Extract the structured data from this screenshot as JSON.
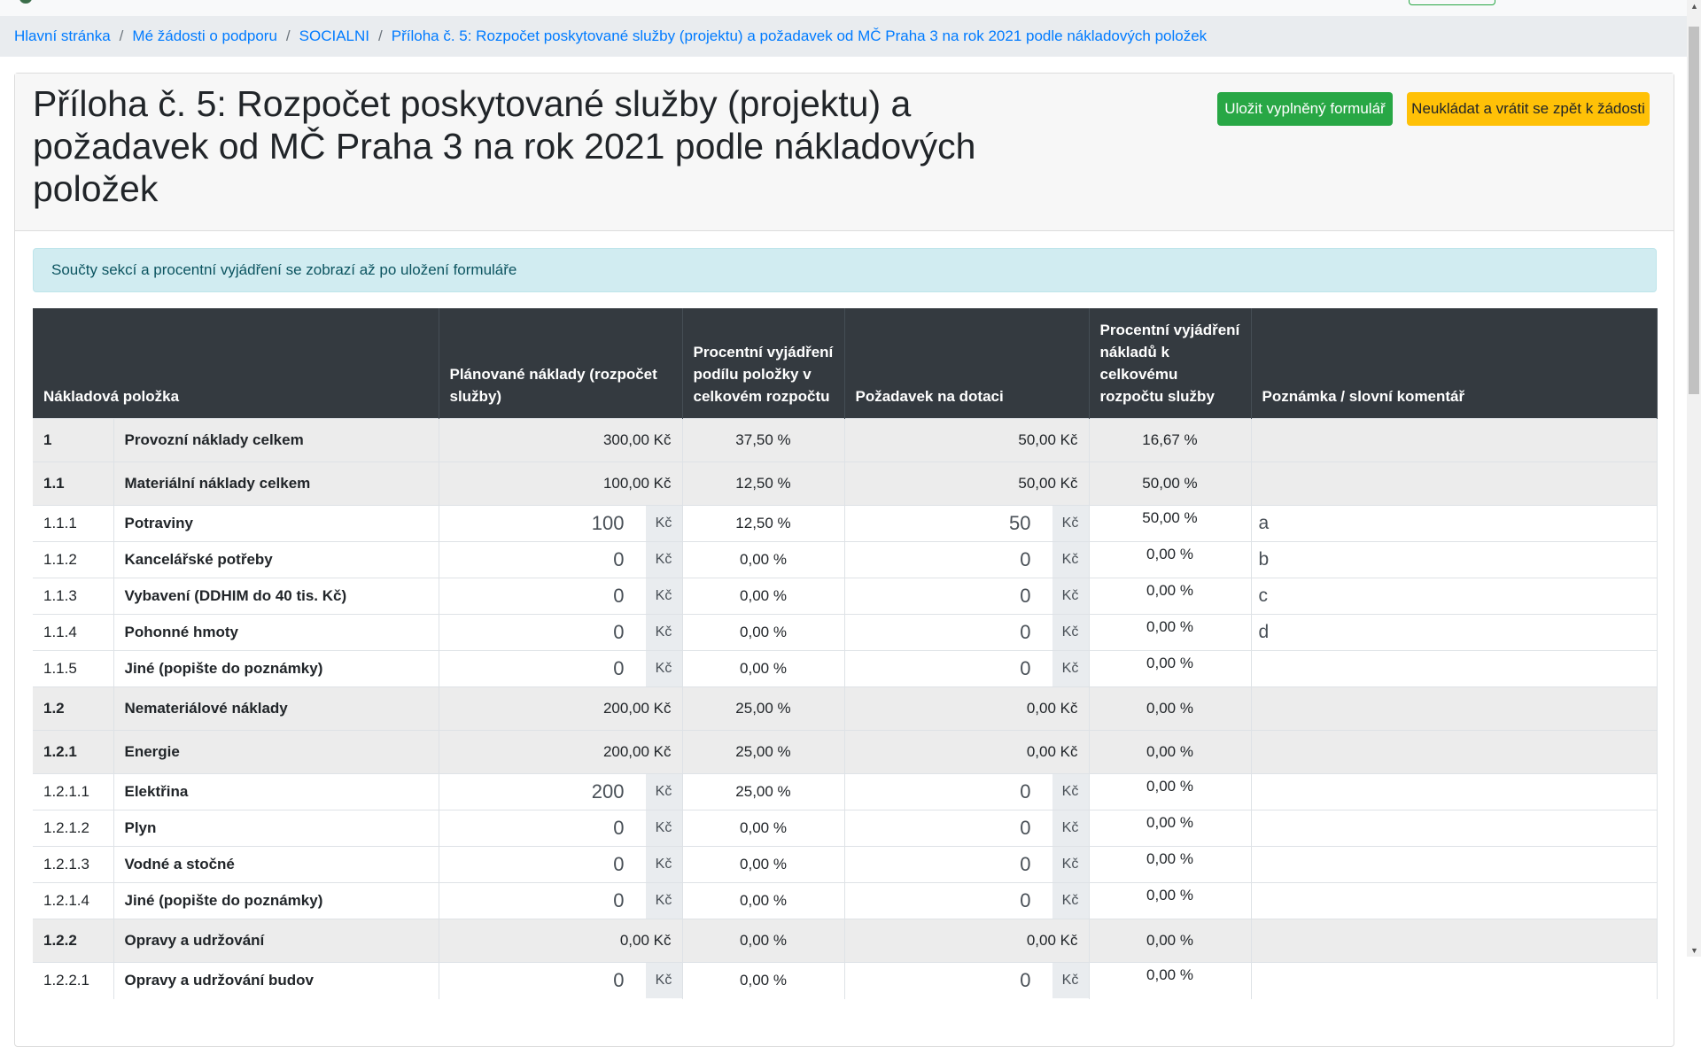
{
  "breadcrumb": [
    "Hlavní stránka",
    "Mé žádosti o podporu",
    "SOCIALNI",
    "Příloha č. 5: Rozpočet poskytované služby (projektu) a požadavek od MČ Praha 3 na rok 2021 podle nákladových položek"
  ],
  "title": "Příloha č. 5: Rozpočet poskytované služby (projektu) a požadavek od MČ Praha 3 na rok 2021 podle nákladových položek",
  "buttons": {
    "save": "Uložit vyplněný formulář",
    "back": "Neukládat a vrátit se zpět k žádosti"
  },
  "alert": "Součty sekcí a procentní vyjádření se zobrazí až po uložení formuláře",
  "colors": {
    "save": "#28a745",
    "back": "#ffc107",
    "header": "#343a40",
    "link": "#007bff"
  },
  "table": {
    "headers": [
      "Nákladová položka",
      "Plánované náklady (rozpočet služby)",
      "Procentní vyjádření podílu položky v celkovém rozpočtu",
      "Požadavek na dotaci",
      "Procentní vyjádření nákladů k celkovému rozpočtu služby",
      "Poznámka / slovní komentář"
    ],
    "currency": "Kč",
    "rows": [
      {
        "type": "grp",
        "code": "1",
        "name": "Provozní náklady celkem",
        "planned": "300,00 Kč",
        "pct": "37,50 %",
        "grant": "50,00 Kč",
        "pct2": "16,67 %",
        "note": ""
      },
      {
        "type": "grp",
        "code": "1.1",
        "name": "Materiální náklady celkem",
        "planned": "100,00 Kč",
        "pct": "12,50 %",
        "grant": "50,00 Kč",
        "pct2": "50,00 %",
        "note": ""
      },
      {
        "type": "inp",
        "code": "1.1.1",
        "name": "Potraviny",
        "planned": "100",
        "pct": "12,50 %",
        "grant": "50",
        "pct2": "50,00 %",
        "note": "a"
      },
      {
        "type": "inp",
        "code": "1.1.2",
        "name": "Kancelářské potřeby",
        "planned": "0",
        "pct": "0,00 %",
        "grant": "0",
        "pct2": "0,00 %",
        "note": "b"
      },
      {
        "type": "inp",
        "code": "1.1.3",
        "name": "Vybavení (DDHIM do 40 tis. Kč)",
        "planned": "0",
        "pct": "0,00 %",
        "grant": "0",
        "pct2": "0,00 %",
        "note": "c"
      },
      {
        "type": "inp",
        "code": "1.1.4",
        "name": "Pohonné hmoty",
        "planned": "0",
        "pct": "0,00 %",
        "grant": "0",
        "pct2": "0,00 %",
        "note": "d"
      },
      {
        "type": "inp",
        "code": "1.1.5",
        "name": "Jiné (popište do poznámky)",
        "planned": "0",
        "pct": "0,00 %",
        "grant": "0",
        "pct2": "0,00 %",
        "note": ""
      },
      {
        "type": "grp",
        "code": "1.2",
        "name": "Nemateriálové náklady",
        "planned": "200,00 Kč",
        "pct": "25,00 %",
        "grant": "0,00 Kč",
        "pct2": "0,00 %",
        "note": ""
      },
      {
        "type": "grp",
        "code": "1.2.1",
        "name": "Energie",
        "planned": "200,00 Kč",
        "pct": "25,00 %",
        "grant": "0,00 Kč",
        "pct2": "0,00 %",
        "note": ""
      },
      {
        "type": "inp",
        "code": "1.2.1.1",
        "name": "Elektřina",
        "planned": "200",
        "pct": "25,00 %",
        "grant": "0",
        "pct2": "0,00 %",
        "note": ""
      },
      {
        "type": "inp",
        "code": "1.2.1.2",
        "name": "Plyn",
        "planned": "0",
        "pct": "0,00 %",
        "grant": "0",
        "pct2": "0,00 %",
        "note": ""
      },
      {
        "type": "inp",
        "code": "1.2.1.3",
        "name": "Vodné a stočné",
        "planned": "0",
        "pct": "0,00 %",
        "grant": "0",
        "pct2": "0,00 %",
        "note": ""
      },
      {
        "type": "inp",
        "code": "1.2.1.4",
        "name": "Jiné (popište do poznámky)",
        "planned": "0",
        "pct": "0,00 %",
        "grant": "0",
        "pct2": "0,00 %",
        "note": ""
      },
      {
        "type": "grp",
        "code": "1.2.2",
        "name": "Opravy a udržování",
        "planned": "0,00 Kč",
        "pct": "0,00 %",
        "grant": "0,00 Kč",
        "pct2": "0,00 %",
        "note": ""
      },
      {
        "type": "inp",
        "code": "1.2.2.1",
        "name": "Opravy a udržování budov",
        "planned": "0",
        "pct": "0,00 %",
        "grant": "0",
        "pct2": "0,00 %",
        "note": ""
      }
    ]
  }
}
